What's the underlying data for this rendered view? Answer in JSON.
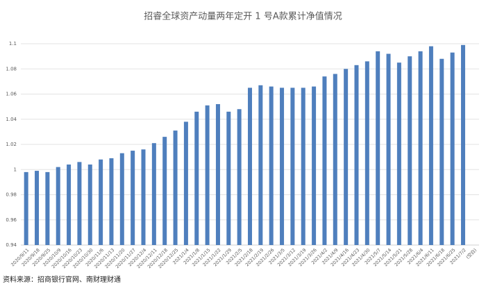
{
  "chart_data": {
    "type": "bar",
    "title": "招睿全球资产动量两年定开 1 号A款累计净值情况",
    "source": "资料来源：招商银行官网、南财理财通",
    "categories": [
      "2020/9/11",
      "2020/9/18",
      "2020/9/25",
      "2020/10/9",
      "2020/10/16",
      "2020/10/23",
      "2020/10/30",
      "2020/11/6",
      "2020/11/13",
      "2020/11/20",
      "2020/11/27",
      "2020/12/4",
      "2020/12/11",
      "2020/12/18",
      "2020/12/25",
      "2021/1/4",
      "2021/1/8",
      "2021/1/15",
      "2021/1/22",
      "2021/1/29",
      "2021/2/5",
      "2021/2/18",
      "2021/2/19",
      "2021/2/26",
      "2021/3/5",
      "2021/3/12",
      "2021/3/19",
      "2021/3/26",
      "2021/4/2",
      "2021/4/9",
      "2021/4/16",
      "2021/4/23",
      "2021/4/30",
      "2021/5/7",
      "2021/5/14",
      "2021/5/21",
      "2021/5/28",
      "2021/6/4",
      "2021/6/11",
      "2021/6/18",
      "2021/6/25",
      "2021/7/2",
      "(空白)"
    ],
    "values": [
      0.998,
      0.999,
      0.998,
      1.002,
      1.004,
      1.006,
      1.004,
      1.008,
      1.009,
      1.013,
      1.015,
      1.016,
      1.021,
      1.026,
      1.031,
      1.038,
      1.046,
      1.051,
      1.052,
      1.046,
      1.048,
      1.065,
      1.067,
      1.066,
      1.065,
      1.065,
      1.065,
      1.066,
      1.074,
      1.076,
      1.08,
      1.083,
      1.086,
      1.094,
      1.092,
      1.085,
      1.09,
      1.094,
      1.098,
      1.088,
      1.093,
      1.099,
      null
    ],
    "color": "#4f7fbd",
    "ylim": [
      0.94,
      1.1
    ],
    "yticks": [
      0.94,
      0.96,
      0.98,
      1,
      1.02,
      1.04,
      1.06,
      1.08,
      1.1
    ],
    "grid": true
  }
}
